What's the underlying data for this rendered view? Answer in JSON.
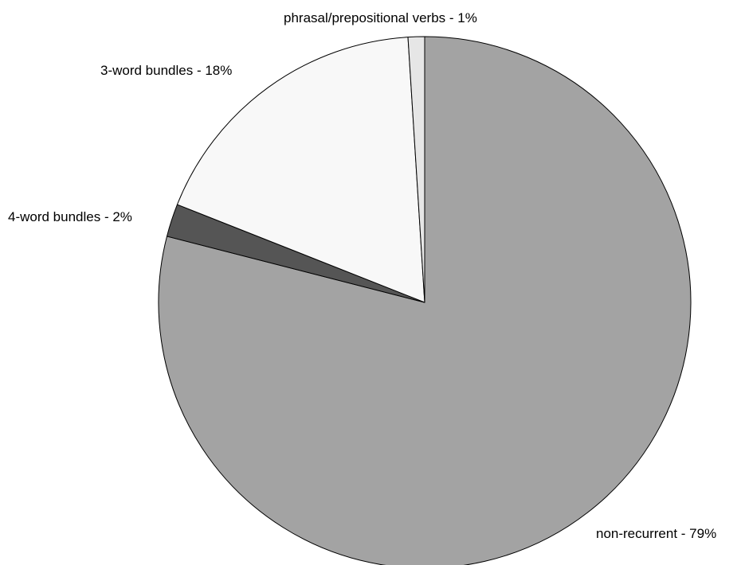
{
  "chart_data": {
    "type": "pie",
    "start_angle_deg": 90,
    "direction": "clockwise",
    "slices": [
      {
        "label": "non-recurrent - 79%",
        "value": 79,
        "color": "#a3a3a3"
      },
      {
        "label": "4-word bundles - 2%",
        "value": 2,
        "color": "#555555"
      },
      {
        "label": "3-word bundles - 18%",
        "value": 18,
        "color": "#f8f8f8"
      },
      {
        "label": "phrasal/prepositional verbs - 1%",
        "value": 1,
        "color": "#e6e6e6"
      }
    ],
    "outline_color": "#000000",
    "background": "#ffffff"
  }
}
